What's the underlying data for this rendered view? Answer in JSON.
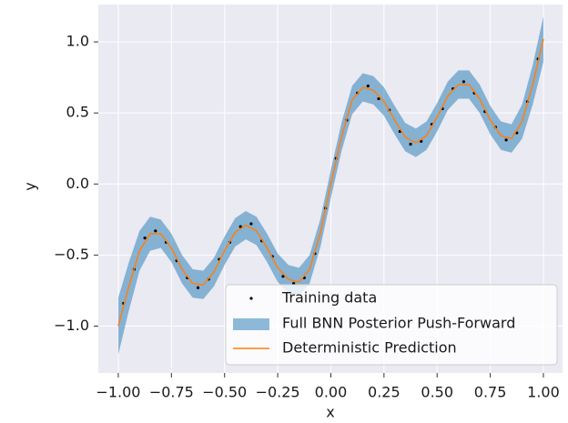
{
  "chart_data": {
    "type": "line",
    "xlabel": "x",
    "ylabel": "y",
    "xlim": [
      -1.094,
      1.09
    ],
    "ylim": [
      -1.33,
      1.263
    ],
    "xticks": [
      {
        "value": -1.0,
        "label": "−1.00"
      },
      {
        "value": -0.75,
        "label": "−0.75"
      },
      {
        "value": -0.5,
        "label": "−0.50"
      },
      {
        "value": -0.25,
        "label": "−0.25"
      },
      {
        "value": 0.0,
        "label": "0.00"
      },
      {
        "value": 0.25,
        "label": "0.25"
      },
      {
        "value": 0.5,
        "label": "0.50"
      },
      {
        "value": 0.75,
        "label": "0.75"
      },
      {
        "value": 1.0,
        "label": "1.00"
      }
    ],
    "yticks": [
      {
        "value": -1.0,
        "label": "−1.0"
      },
      {
        "value": -0.5,
        "label": "−0.5"
      },
      {
        "value": 0.0,
        "label": "0.0"
      },
      {
        "value": 0.5,
        "label": "0.5"
      },
      {
        "value": 1.0,
        "label": "1.0"
      }
    ],
    "grid": true,
    "background": "#eaeaf2",
    "legend": "lower right",
    "x": [
      -1.0,
      -0.95,
      -0.9,
      -0.85,
      -0.8,
      -0.75,
      -0.7,
      -0.65,
      -0.6,
      -0.55,
      -0.5,
      -0.45,
      -0.4,
      -0.35,
      -0.3,
      -0.25,
      -0.2,
      -0.15,
      -0.1,
      -0.05,
      0.0,
      0.05,
      0.1,
      0.15,
      0.2,
      0.25,
      0.3,
      0.35,
      0.4,
      0.45,
      0.5,
      0.55,
      0.6,
      0.65,
      0.7,
      0.75,
      0.8,
      0.85,
      0.9,
      0.95,
      1.0
    ],
    "training": {
      "name": "Training data",
      "color": "#000000",
      "x": [
        -0.975,
        -0.925,
        -0.875,
        -0.825,
        -0.775,
        -0.725,
        -0.675,
        -0.625,
        -0.575,
        -0.525,
        -0.475,
        -0.425,
        -0.375,
        -0.325,
        -0.275,
        -0.225,
        -0.175,
        -0.125,
        -0.075,
        -0.025,
        0.025,
        0.075,
        0.125,
        0.175,
        0.225,
        0.275,
        0.325,
        0.375,
        0.425,
        0.475,
        0.525,
        0.575,
        0.625,
        0.675,
        0.725,
        0.775,
        0.825,
        0.875,
        0.925,
        0.975
      ],
      "y": [
        -0.84,
        -0.6,
        -0.38,
        -0.33,
        -0.41,
        -0.54,
        -0.66,
        -0.73,
        -0.67,
        -0.53,
        -0.41,
        -0.3,
        -0.28,
        -0.4,
        -0.51,
        -0.65,
        -0.7,
        -0.66,
        -0.49,
        -0.17,
        0.18,
        0.45,
        0.64,
        0.69,
        0.6,
        0.52,
        0.37,
        0.28,
        0.3,
        0.42,
        0.53,
        0.67,
        0.72,
        0.64,
        0.51,
        0.4,
        0.31,
        0.36,
        0.58,
        0.88
      ]
    },
    "band": {
      "name": "Full BNN Posterior Push-Forward",
      "color": "#1f77b4",
      "opacity": 0.5,
      "lower": [
        -1.2,
        -0.89,
        -0.61,
        -0.47,
        -0.45,
        -0.55,
        -0.7,
        -0.8,
        -0.81,
        -0.72,
        -0.57,
        -0.44,
        -0.39,
        -0.43,
        -0.55,
        -0.69,
        -0.77,
        -0.79,
        -0.7,
        -0.45,
        -0.1,
        0.23,
        0.49,
        0.58,
        0.56,
        0.48,
        0.35,
        0.23,
        0.19,
        0.24,
        0.37,
        0.52,
        0.6,
        0.6,
        0.5,
        0.35,
        0.24,
        0.22,
        0.32,
        0.56,
        0.86
      ],
      "upper": [
        -0.8,
        -0.55,
        -0.33,
        -0.23,
        -0.25,
        -0.35,
        -0.5,
        -0.6,
        -0.61,
        -0.52,
        -0.37,
        -0.24,
        -0.19,
        -0.23,
        -0.35,
        -0.49,
        -0.57,
        -0.59,
        -0.5,
        -0.25,
        0.1,
        0.43,
        0.69,
        0.78,
        0.76,
        0.68,
        0.55,
        0.43,
        0.39,
        0.44,
        0.57,
        0.72,
        0.8,
        0.8,
        0.7,
        0.55,
        0.44,
        0.42,
        0.56,
        0.84,
        1.18
      ]
    },
    "prediction": {
      "name": "Deterministic Prediction",
      "color": "#ff7f0e",
      "values": [
        -1.0,
        -0.72,
        -0.47,
        -0.35,
        -0.35,
        -0.45,
        -0.6,
        -0.7,
        -0.71,
        -0.62,
        -0.47,
        -0.34,
        -0.29,
        -0.33,
        -0.45,
        -0.59,
        -0.67,
        -0.69,
        -0.6,
        -0.35,
        0.0,
        0.33,
        0.59,
        0.68,
        0.66,
        0.58,
        0.45,
        0.33,
        0.29,
        0.34,
        0.47,
        0.62,
        0.7,
        0.7,
        0.6,
        0.45,
        0.34,
        0.32,
        0.44,
        0.7,
        1.02
      ]
    }
  }
}
